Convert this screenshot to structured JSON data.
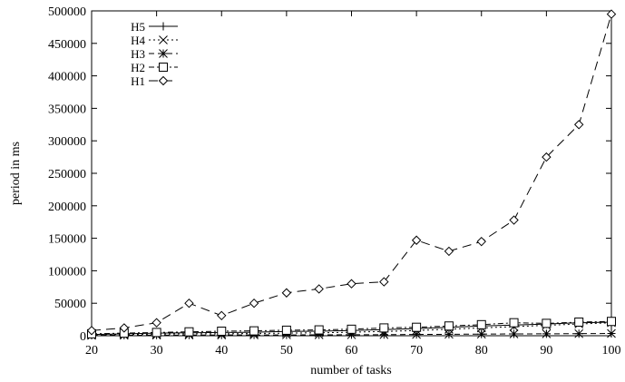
{
  "chart_data": {
    "type": "line",
    "title": "",
    "xlabel": "number of tasks",
    "ylabel": "period in ms",
    "xlim": [
      20,
      100
    ],
    "ylim": [
      0,
      500000
    ],
    "x_ticks": [
      20,
      30,
      40,
      50,
      60,
      70,
      80,
      90,
      100
    ],
    "x_tick_labels": [
      "20",
      "30",
      "40",
      "50",
      "60",
      "70",
      "80",
      "90",
      "100"
    ],
    "y_ticks": [
      0,
      50000,
      100000,
      150000,
      200000,
      250000,
      300000,
      350000,
      400000,
      450000,
      500000
    ],
    "y_tick_labels": [
      "0",
      "50000",
      "100000",
      "150000",
      "200000",
      "250000",
      "300000",
      "350000",
      "400000",
      "450000",
      "500000"
    ],
    "grid": false,
    "legend_position": "top-left",
    "x": [
      20,
      25,
      30,
      35,
      40,
      45,
      50,
      55,
      60,
      65,
      70,
      75,
      80,
      85,
      90,
      95,
      100
    ],
    "series": [
      {
        "name": "H5",
        "marker": "plus",
        "dash": "solid",
        "color": "#000000",
        "values": [
          2000,
          3000,
          4000,
          4500,
          5000,
          5500,
          6500,
          7000,
          8000,
          9500,
          11000,
          13000,
          15000,
          16500,
          18000,
          20000,
          21000
        ]
      },
      {
        "name": "H4",
        "marker": "cross",
        "dash": "dotted",
        "color": "#000000",
        "values": [
          1500,
          2000,
          2500,
          3000,
          3000,
          3500,
          4000,
          4500,
          5500,
          6500,
          8000,
          10000,
          12000,
          14000,
          16000,
          18000,
          20000
        ]
      },
      {
        "name": "H3",
        "marker": "star",
        "dash": "dashed",
        "color": "#000000",
        "values": [
          500,
          700,
          900,
          1000,
          1100,
          1200,
          1300,
          1400,
          1500,
          1700,
          1900,
          2200,
          2500,
          2800,
          3000,
          3200,
          3500
        ]
      },
      {
        "name": "H2",
        "marker": "square",
        "dash": "dashdot",
        "color": "#000000",
        "values": [
          3000,
          4000,
          5000,
          6000,
          7000,
          7500,
          8500,
          9000,
          10000,
          12000,
          13000,
          15000,
          17000,
          20000,
          19000,
          21000,
          22000
        ]
      },
      {
        "name": "H1",
        "marker": "diamond",
        "dash": "longdash",
        "color": "#000000",
        "values": [
          8000,
          12000,
          20000,
          50000,
          31000,
          50000,
          66000,
          72000,
          80000,
          83000,
          147000,
          130000,
          145000,
          178000,
          275000,
          325000,
          495000
        ]
      }
    ]
  }
}
